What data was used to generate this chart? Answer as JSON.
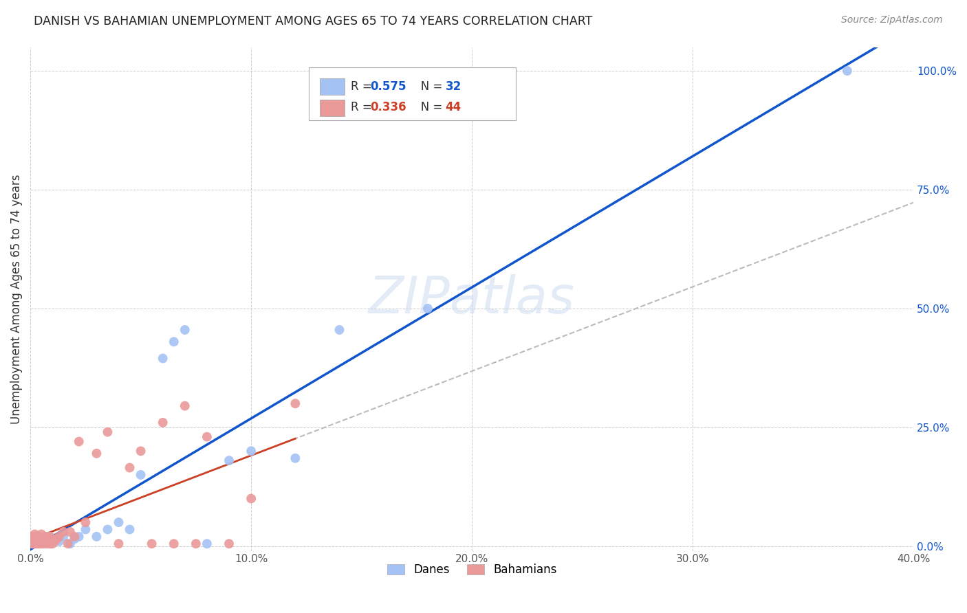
{
  "title": "DANISH VS BAHAMIAN UNEMPLOYMENT AMONG AGES 65 TO 74 YEARS CORRELATION CHART",
  "source": "Source: ZipAtlas.com",
  "ylabel": "Unemployment Among Ages 65 to 74 years",
  "xlabel_ticks": [
    "0.0%",
    "10.0%",
    "20.0%",
    "30.0%",
    "40.0%"
  ],
  "ylabel_ticks_right": [
    "100.0%",
    "75.0%",
    "50.0%",
    "25.0%",
    "0.0%"
  ],
  "xlim": [
    0,
    0.4
  ],
  "ylim": [
    -0.01,
    1.05
  ],
  "danes_R": 0.575,
  "danes_N": 32,
  "bahamians_R": 0.336,
  "bahamians_N": 44,
  "danes_color": "#a4c2f4",
  "bahamians_color": "#ea9999",
  "danes_line_color": "#1155cc",
  "bahamians_line_color": "#cc4125",
  "danes_x": [
    0.001,
    0.002,
    0.003,
    0.003,
    0.004,
    0.005,
    0.006,
    0.007,
    0.008,
    0.009,
    0.012,
    0.013,
    0.015,
    0.018,
    0.02,
    0.022,
    0.025,
    0.03,
    0.035,
    0.04,
    0.045,
    0.05,
    0.06,
    0.065,
    0.07,
    0.08,
    0.09,
    0.1,
    0.12,
    0.14,
    0.18,
    0.37
  ],
  "danes_y": [
    0.005,
    0.01,
    0.005,
    0.015,
    0.02,
    0.005,
    0.01,
    0.005,
    0.02,
    0.005,
    0.015,
    0.01,
    0.02,
    0.005,
    0.015,
    0.02,
    0.035,
    0.02,
    0.035,
    0.05,
    0.035,
    0.15,
    0.395,
    0.43,
    0.455,
    0.005,
    0.18,
    0.2,
    0.185,
    0.455,
    0.5,
    1.0
  ],
  "bahamians_x": [
    0.001,
    0.001,
    0.001,
    0.002,
    0.002,
    0.002,
    0.003,
    0.003,
    0.004,
    0.004,
    0.005,
    0.005,
    0.005,
    0.006,
    0.006,
    0.007,
    0.008,
    0.008,
    0.009,
    0.009,
    0.01,
    0.011,
    0.012,
    0.013,
    0.015,
    0.017,
    0.018,
    0.02,
    0.022,
    0.025,
    0.03,
    0.035,
    0.04,
    0.045,
    0.05,
    0.055,
    0.06,
    0.065,
    0.07,
    0.075,
    0.08,
    0.09,
    0.1,
    0.12
  ],
  "bahamians_y": [
    0.005,
    0.01,
    0.02,
    0.005,
    0.01,
    0.025,
    0.005,
    0.02,
    0.005,
    0.015,
    0.005,
    0.01,
    0.025,
    0.005,
    0.015,
    0.02,
    0.005,
    0.015,
    0.005,
    0.02,
    0.005,
    0.01,
    0.015,
    0.02,
    0.03,
    0.005,
    0.03,
    0.02,
    0.22,
    0.05,
    0.195,
    0.24,
    0.005,
    0.165,
    0.2,
    0.005,
    0.26,
    0.005,
    0.295,
    0.005,
    0.23,
    0.005,
    0.1,
    0.3
  ]
}
